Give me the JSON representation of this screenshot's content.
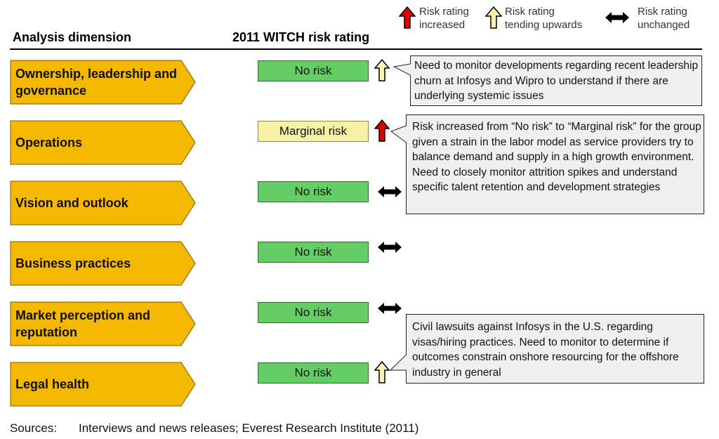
{
  "legend": {
    "increased": "Risk rating\nincreased",
    "tending_upwards": "Risk rating\ntending upwards",
    "unchanged": "Risk rating\nunchanged"
  },
  "headers": {
    "dimension": "Analysis dimension",
    "rating": "2011 WITCH risk rating"
  },
  "colors": {
    "chevron_fill": "#f5b800",
    "no_risk": "#66cc66",
    "marginal_risk": "#f7f1a8",
    "arrow_increased": "#e00000",
    "arrow_tending": "#fff2b0",
    "callout_fill": "#f0f0f0"
  },
  "dimensions": [
    {
      "label": "Ownership, leadership and governance",
      "rating": "No risk",
      "rating_level": "no-risk",
      "trend": "tending-upwards",
      "trend_icon": "hollow-up-arrow-icon"
    },
    {
      "label": "Operations",
      "rating": "Marginal risk",
      "rating_level": "marginal-risk",
      "trend": "increased",
      "trend_icon": "red-up-arrow-icon"
    },
    {
      "label": "Vision and outlook",
      "rating": "No risk",
      "rating_level": "no-risk",
      "trend": "unchanged",
      "trend_icon": "double-arrow-icon"
    },
    {
      "label": "Business practices",
      "rating": "No risk",
      "rating_level": "no-risk",
      "trend": "unchanged",
      "trend_icon": "double-arrow-icon"
    },
    {
      "label": "Market perception and reputation",
      "rating": "No risk",
      "rating_level": "no-risk",
      "trend": "unchanged",
      "trend_icon": "double-arrow-icon"
    },
    {
      "label": "Legal health",
      "rating": "No risk",
      "rating_level": "no-risk",
      "trend": "tending-upwards",
      "trend_icon": "hollow-up-arrow-icon"
    }
  ],
  "callouts": {
    "governance": "Need to monitor developments regarding recent leadership churn at Infosys and Wipro to understand if there are underlying systemic issues",
    "operations": "Risk increased from “No risk” to “Marginal risk” for the group given a strain in the labor model as service providers try to balance demand and supply in a high growth environment. Need to closely monitor attrition spikes and understand specific talent retention and development strategies",
    "legal": "Civil lawsuits against Infosys in the U.S. regarding visas/hiring practices. Need to monitor to determine if  outcomes constrain onshore resourcing for the offshore industry in general"
  },
  "sources": {
    "label": "Sources:",
    "text": "Interviews and news releases; Everest Research Institute (2011)"
  }
}
